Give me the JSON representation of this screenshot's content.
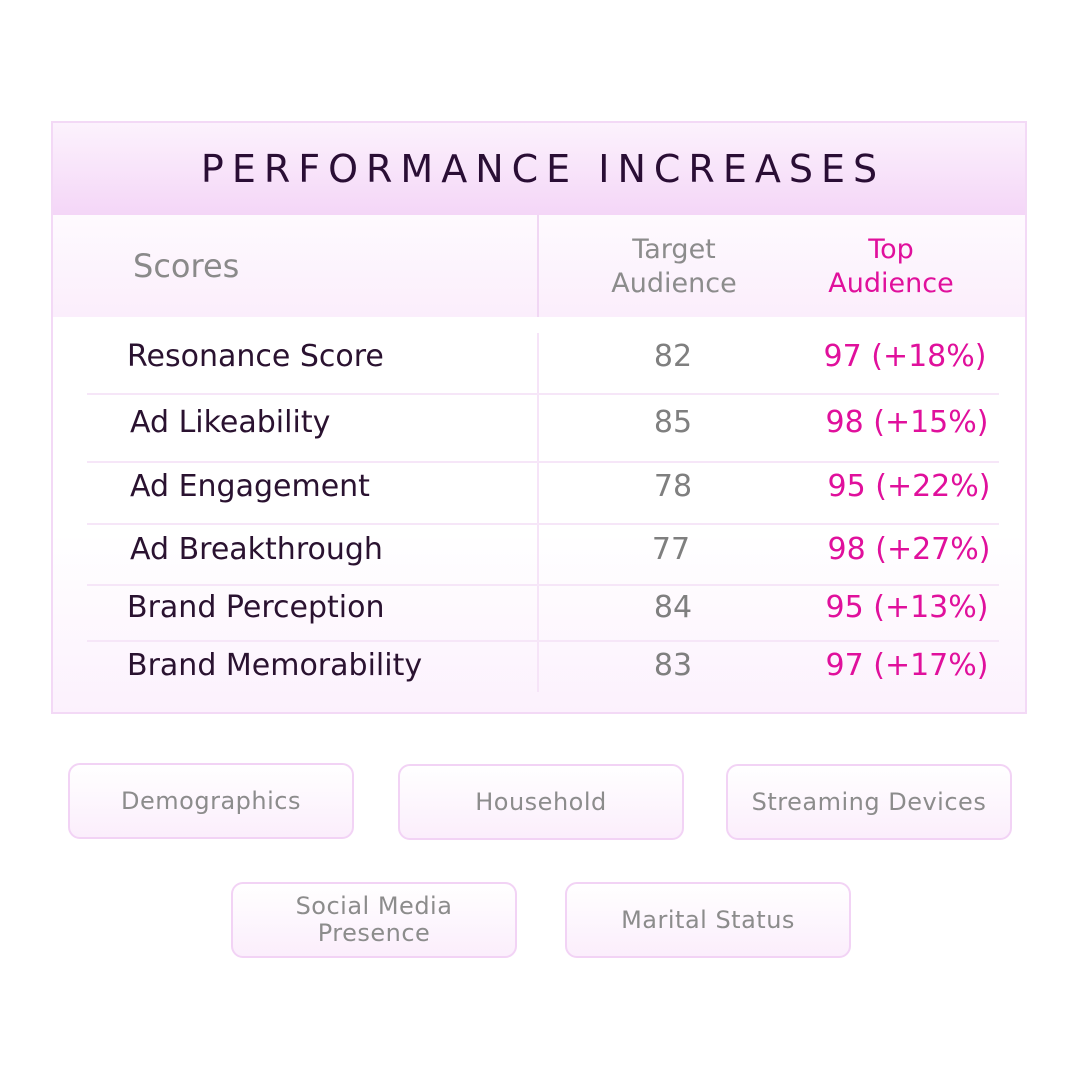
{
  "title": "PERFORMANCE INCREASES",
  "header": {
    "scores_label": "Scores",
    "target_audience": "Target\nAudience",
    "top_audience": "Top\nAudience"
  },
  "rows": [
    {
      "metric": "Resonance Score",
      "target": "82",
      "top": "97 (+18%)"
    },
    {
      "metric": "Ad Likeability",
      "target": "85",
      "top": "98 (+15%)"
    },
    {
      "metric": "Ad Engagement",
      "target": "78",
      "top": "95 (+22%)"
    },
    {
      "metric": "Ad Breakthrough",
      "target": "77",
      "top": "98 (+27%)"
    },
    {
      "metric": "Brand Perception",
      "target": "84",
      "top": "95 (+13%)"
    },
    {
      "metric": "Brand Memorability",
      "target": "83",
      "top": "97 (+17%)"
    }
  ],
  "tags": [
    "Demographics",
    "Household",
    "Streaming Devices",
    "Social Media Presence",
    "Marital Status"
  ],
  "colors": {
    "accent": "#e0109c",
    "title_text": "#2a0e35",
    "muted_text": "#8c8c8c",
    "border": "#f2d3f5"
  }
}
